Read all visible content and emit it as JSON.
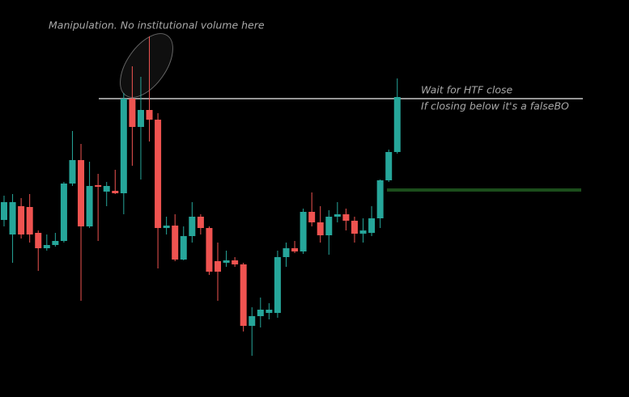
{
  "chart_data": {
    "type": "candlestick",
    "annotations": [
      "Manipulation. No institutional volume here",
      "Wait for HTF close",
      "If closing below it's a falseBO"
    ],
    "up_color": "#26a69a",
    "down_color": "#ef5350",
    "ylim": [
      0,
      491
    ],
    "levels": [
      {
        "value": 369,
        "color": "#c8c8c8"
      },
      {
        "value": 256,
        "color": "#1b4d1b"
      }
    ],
    "open": [
      219,
      201,
      236,
      235,
      203,
      184,
      188,
      193,
      264,
      293,
      211,
      262,
      254,
      255,
      252,
      369,
      334,
      355,
      343,
      209,
      212,
      170,
      199,
      223,
      209,
      168,
      166,
      169,
      164,
      88,
      100,
      104,
      104,
      173,
      184,
      180,
      229,
      216,
      200,
      223,
      226,
      218,
      202,
      203,
      221,
      268,
      303
    ],
    "high": [
      249,
      251,
      246,
      251,
      206,
      201,
      203,
      266,
      329,
      313,
      291,
      276,
      266,
      281,
      376,
      409,
      396,
      446,
      351,
      223,
      226,
      211,
      241,
      226,
      211,
      191,
      181,
      173,
      166,
      111,
      123,
      116,
      181,
      191,
      193,
      233,
      253,
      236,
      231,
      241,
      233,
      223,
      221,
      236,
      269,
      306,
      394
    ],
    "low": [
      211,
      166,
      196,
      191,
      156,
      181,
      186,
      191,
      261,
      119,
      209,
      193,
      236,
      251,
      226,
      286,
      269,
      316,
      159,
      201,
      168,
      169,
      191,
      201,
      151,
      119,
      161,
      161,
      81,
      51,
      86,
      96,
      98,
      161,
      178,
      177,
      211,
      191,
      176,
      216,
      206,
      191,
      191,
      199,
      209,
      266,
      301
    ],
    "close": [
      241,
      241,
      201,
      201,
      184,
      188,
      193,
      264,
      293,
      211,
      261,
      260,
      261,
      252,
      369,
      334,
      355,
      343,
      209,
      212,
      170,
      199,
      223,
      209,
      155,
      155,
      169,
      164,
      88,
      100,
      108,
      108,
      173,
      184,
      180,
      229,
      216,
      200,
      223,
      226,
      218,
      202,
      206,
      221,
      268,
      303,
      371
    ]
  }
}
